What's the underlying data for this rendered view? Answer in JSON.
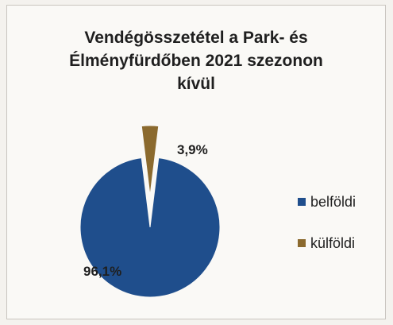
{
  "chart_data": {
    "type": "pie",
    "title_lines": [
      "Vendégösszetétel a Park- és",
      "Élményfürdőben 2021 szezonon",
      "kívül"
    ],
    "categories": [
      "belföldi",
      "külföldi"
    ],
    "values": [
      96.1,
      3.9
    ],
    "data_labels": [
      "96,1%",
      "3,9%"
    ],
    "colors": [
      "#1f4e8c",
      "#8b6a2e"
    ],
    "exploded": [
      "külföldi"
    ],
    "legend_position": "right"
  }
}
